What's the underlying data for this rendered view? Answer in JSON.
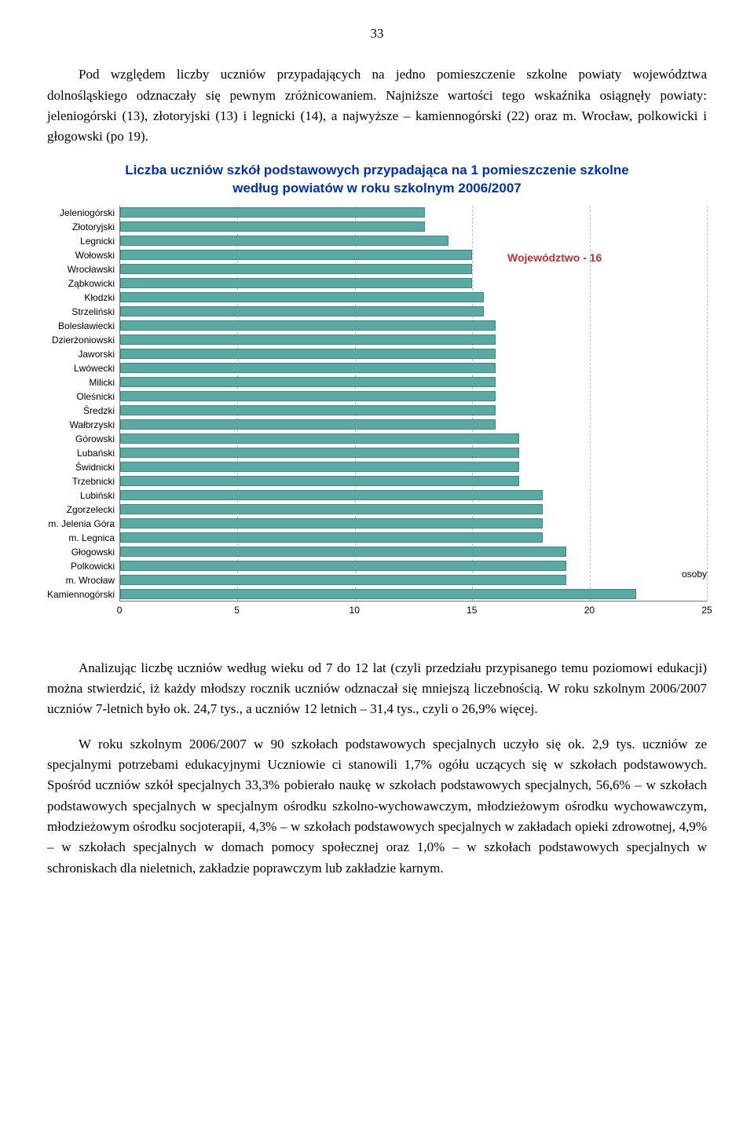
{
  "page_number": "33",
  "paragraphs": {
    "p1": "Pod względem liczby uczniów przypadających na jedno pomieszczenie szkolne powiaty województwa dolnośląskiego odznaczały się pewnym zróżnicowaniem. Najniższe wartości tego wskaźnika osiągnęły powiaty: jeleniogórski (13), złotoryjski (13) i legnicki (14), a najwyższe – kamiennogórski (22) oraz m. Wrocław, polkowicki i głogowski (po 19).",
    "p2": "Analizując liczbę uczniów według wieku od 7 do 12 lat (czyli przedziału przypisanego temu poziomowi edukacji) można stwierdzić, iż każdy młodszy rocznik uczniów odznaczał się mniejszą liczebnością. W roku szkolnym 2006/2007 uczniów 7-letnich było ok. 24,7 tys., a uczniów 12 letnich – 31,4 tys., czyli o 26,9% więcej.",
    "p3": "W roku szkolnym 2006/2007 w 90 szkołach podstawowych specjalnych uczyło się ok. 2,9 tys. uczniów ze specjalnymi potrzebami edukacyjnymi Uczniowie ci stanowili 1,7% ogółu uczących się w szkołach podstawowych. Spośród uczniów szkół specjalnych 33,3% pobierało naukę w szkołach podstawowych specjalnych, 56,6% – w szkołach podstawowych specjalnych w specjalnym ośrodku szkolno-wychowawczym, młodzieżowym ośrodku wychowawczym, młodzieżowym ośrodku socjoterapii, 4,3% – w szkołach podstawowych specjalnych w zakładach opieki zdrowotnej, 4,9% – w szkołach specjalnych w domach pomocy społecznej oraz 1,0% – w szkołach podstawowych specjalnych w schroniskach dla nieletnich, zakładzie poprawczym lub zakładzie karnym."
  },
  "chart": {
    "type": "bar_horizontal",
    "title_line1": "Liczba uczniów szkół podstawowych przypadająca na 1 pomieszczenie szkolne",
    "title_line2": "według powiatów w roku szkolnym 2006/2007",
    "annotation": "Województwo - 16",
    "x_unit": "osoby",
    "x_max": 25,
    "x_ticks": [
      0,
      5,
      10,
      15,
      20,
      25
    ],
    "bar_color": "#5aa9a3",
    "bar_border": "#3a8a84",
    "grid_color": "#bfbfbf",
    "title_color": "#0033aa",
    "annotation_color": "#c03030",
    "categories": [
      {
        "label": "Jeleniogórski",
        "value": 13
      },
      {
        "label": "Złotoryjski",
        "value": 13
      },
      {
        "label": "Legnicki",
        "value": 14
      },
      {
        "label": "Wołowski",
        "value": 15
      },
      {
        "label": "Wrocławski",
        "value": 15
      },
      {
        "label": "Ząbkowicki",
        "value": 15
      },
      {
        "label": "Kłodzki",
        "value": 15.5
      },
      {
        "label": "Strzeliński",
        "value": 15.5
      },
      {
        "label": "Bolesławiecki",
        "value": 16
      },
      {
        "label": "Dzierżoniowski",
        "value": 16
      },
      {
        "label": "Jaworski",
        "value": 16
      },
      {
        "label": "Lwówecki",
        "value": 16
      },
      {
        "label": "Milicki",
        "value": 16
      },
      {
        "label": "Oleśnicki",
        "value": 16
      },
      {
        "label": "Średzki",
        "value": 16
      },
      {
        "label": "Wałbrzyski",
        "value": 16
      },
      {
        "label": "Górowski",
        "value": 17
      },
      {
        "label": "Lubański",
        "value": 17
      },
      {
        "label": "Świdnicki",
        "value": 17
      },
      {
        "label": "Trzebnicki",
        "value": 17
      },
      {
        "label": "Lubiński",
        "value": 18
      },
      {
        "label": "Zgorzelecki",
        "value": 18
      },
      {
        "label": "m. Jelenia Góra",
        "value": 18
      },
      {
        "label": "m. Legnica",
        "value": 18
      },
      {
        "label": "Głogowski",
        "value": 19
      },
      {
        "label": "Polkowicki",
        "value": 19
      },
      {
        "label": "m. Wrocław",
        "value": 19
      },
      {
        "label": "Kamiennogórski",
        "value": 22
      }
    ]
  }
}
